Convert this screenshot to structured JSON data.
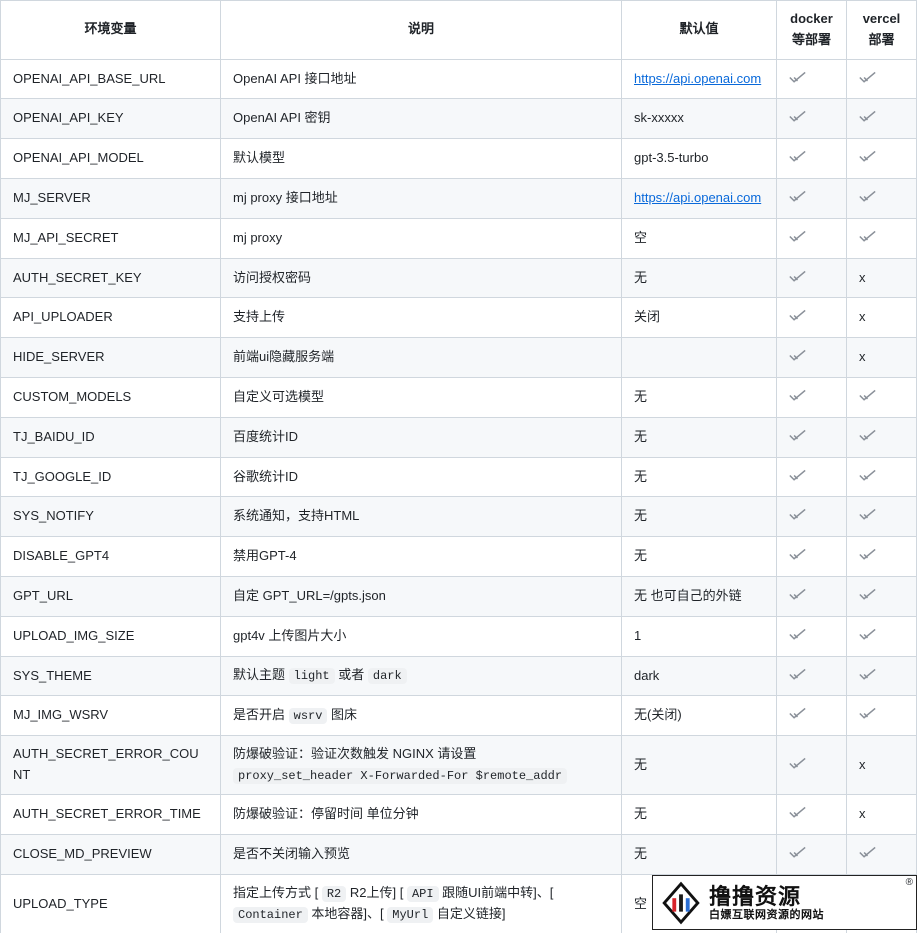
{
  "headers": [
    "环境变量",
    "说明",
    "默认值",
    "docker等部署",
    "vercel部署"
  ],
  "check_glyph": "✓",
  "x_glyph": "x",
  "link_color": "#0969da",
  "border_color": "#d0d7de",
  "stripe_bg": "#f6f8fa",
  "code_bg": "#eff1f3",
  "watermark": {
    "title": "撸撸资源",
    "sub": "白嫖互联网资源的网站",
    "r": "®"
  },
  "rows": [
    {
      "env": "OPENAI_API_BASE_URL",
      "desc": [
        {
          "t": "text",
          "v": "OpenAI API 接口地址"
        }
      ],
      "def": [
        {
          "t": "link",
          "v": "https://api.openai.com"
        }
      ],
      "d": "c",
      "v": "c"
    },
    {
      "env": "OPENAI_API_KEY",
      "desc": [
        {
          "t": "text",
          "v": "OpenAI API 密钥"
        }
      ],
      "def": [
        {
          "t": "text",
          "v": "sk-xxxxx"
        }
      ],
      "d": "c",
      "v": "c"
    },
    {
      "env": "OPENAI_API_MODEL",
      "desc": [
        {
          "t": "text",
          "v": "默认模型"
        }
      ],
      "def": [
        {
          "t": "text",
          "v": "gpt-3.5-turbo"
        }
      ],
      "d": "c",
      "v": "c"
    },
    {
      "env": "MJ_SERVER",
      "desc": [
        {
          "t": "text",
          "v": "mj proxy 接口地址"
        }
      ],
      "def": [
        {
          "t": "link",
          "v": "https://api.openai.com"
        }
      ],
      "d": "c",
      "v": "c"
    },
    {
      "env": "MJ_API_SECRET",
      "desc": [
        {
          "t": "text",
          "v": "mj proxy"
        }
      ],
      "def": [
        {
          "t": "text",
          "v": "空"
        }
      ],
      "d": "c",
      "v": "c"
    },
    {
      "env": "AUTH_SECRET_KEY",
      "desc": [
        {
          "t": "text",
          "v": "访问授权密码"
        }
      ],
      "def": [
        {
          "t": "text",
          "v": "无"
        }
      ],
      "d": "c",
      "v": "x"
    },
    {
      "env": "API_UPLOADER",
      "desc": [
        {
          "t": "text",
          "v": "支持上传"
        }
      ],
      "def": [
        {
          "t": "text",
          "v": "关闭"
        }
      ],
      "d": "c",
      "v": "x"
    },
    {
      "env": "HIDE_SERVER",
      "desc": [
        {
          "t": "text",
          "v": "前端ui隐藏服务端"
        }
      ],
      "def": [
        {
          "t": "text",
          "v": ""
        }
      ],
      "d": "c",
      "v": "x"
    },
    {
      "env": "CUSTOM_MODELS",
      "desc": [
        {
          "t": "text",
          "v": "自定义可选模型"
        }
      ],
      "def": [
        {
          "t": "text",
          "v": "无"
        }
      ],
      "d": "c",
      "v": "c"
    },
    {
      "env": "TJ_BAIDU_ID",
      "desc": [
        {
          "t": "text",
          "v": "百度统计ID"
        }
      ],
      "def": [
        {
          "t": "text",
          "v": "无"
        }
      ],
      "d": "c",
      "v": "c"
    },
    {
      "env": "TJ_GOOGLE_ID",
      "desc": [
        {
          "t": "text",
          "v": "谷歌统计ID"
        }
      ],
      "def": [
        {
          "t": "text",
          "v": "无"
        }
      ],
      "d": "c",
      "v": "c"
    },
    {
      "env": "SYS_NOTIFY",
      "desc": [
        {
          "t": "text",
          "v": "系统通知，支持HTML"
        }
      ],
      "def": [
        {
          "t": "text",
          "v": "无"
        }
      ],
      "d": "c",
      "v": "c"
    },
    {
      "env": "DISABLE_GPT4",
      "desc": [
        {
          "t": "text",
          "v": "禁用GPT-4"
        }
      ],
      "def": [
        {
          "t": "text",
          "v": "无"
        }
      ],
      "d": "c",
      "v": "c"
    },
    {
      "env": "GPT_URL",
      "desc": [
        {
          "t": "text",
          "v": "自定 GPT_URL=/gpts.json"
        }
      ],
      "def": [
        {
          "t": "text",
          "v": "无 也可自己的外链"
        }
      ],
      "d": "c",
      "v": "c"
    },
    {
      "env": "UPLOAD_IMG_SIZE",
      "desc": [
        {
          "t": "text",
          "v": "gpt4v 上传图片大小"
        }
      ],
      "def": [
        {
          "t": "text",
          "v": "1"
        }
      ],
      "d": "c",
      "v": "c"
    },
    {
      "env": "SYS_THEME",
      "desc": [
        {
          "t": "text",
          "v": "默认主题 "
        },
        {
          "t": "code",
          "v": "light"
        },
        {
          "t": "text",
          "v": " 或者 "
        },
        {
          "t": "code",
          "v": "dark"
        }
      ],
      "def": [
        {
          "t": "text",
          "v": "dark"
        }
      ],
      "d": "c",
      "v": "c"
    },
    {
      "env": "MJ_IMG_WSRV",
      "desc": [
        {
          "t": "text",
          "v": "是否开启 "
        },
        {
          "t": "code",
          "v": "wsrv"
        },
        {
          "t": "text",
          "v": " 图床"
        }
      ],
      "def": [
        {
          "t": "text",
          "v": "无(关闭)"
        }
      ],
      "d": "c",
      "v": "c"
    },
    {
      "env": "AUTH_SECRET_ERROR_COUNT",
      "desc": [
        {
          "t": "text",
          "v": "防爆破验证：验证次数触发 NGINX 请设置 "
        },
        {
          "t": "code",
          "v": "proxy_set_header   X-Forwarded-For  $remote_addr"
        }
      ],
      "def": [
        {
          "t": "text",
          "v": "无"
        }
      ],
      "d": "c",
      "v": "x"
    },
    {
      "env": "AUTH_SECRET_ERROR_TIME",
      "desc": [
        {
          "t": "text",
          "v": "防爆破验证：停留时间 单位分钟"
        }
      ],
      "def": [
        {
          "t": "text",
          "v": "无"
        }
      ],
      "d": "c",
      "v": "x"
    },
    {
      "env": "CLOSE_MD_PREVIEW",
      "desc": [
        {
          "t": "text",
          "v": "是否不关闭输入预览"
        }
      ],
      "def": [
        {
          "t": "text",
          "v": "无"
        }
      ],
      "d": "c",
      "v": "c"
    },
    {
      "env": "UPLOAD_TYPE",
      "desc": [
        {
          "t": "text",
          "v": "指定上传方式 [ "
        },
        {
          "t": "code",
          "v": "R2"
        },
        {
          "t": "text",
          "v": " R2上传] [ "
        },
        {
          "t": "code",
          "v": "API"
        },
        {
          "t": "text",
          "v": " 跟随UI前端中转]、[ "
        },
        {
          "t": "code",
          "v": "Container"
        },
        {
          "t": "text",
          "v": " 本地容器]、[ "
        },
        {
          "t": "code",
          "v": "MyUrl"
        },
        {
          "t": "text",
          "v": " 自定义链接]"
        }
      ],
      "def": [
        {
          "t": "text",
          "v": "空"
        }
      ],
      "d": "c",
      "v": "c"
    }
  ]
}
